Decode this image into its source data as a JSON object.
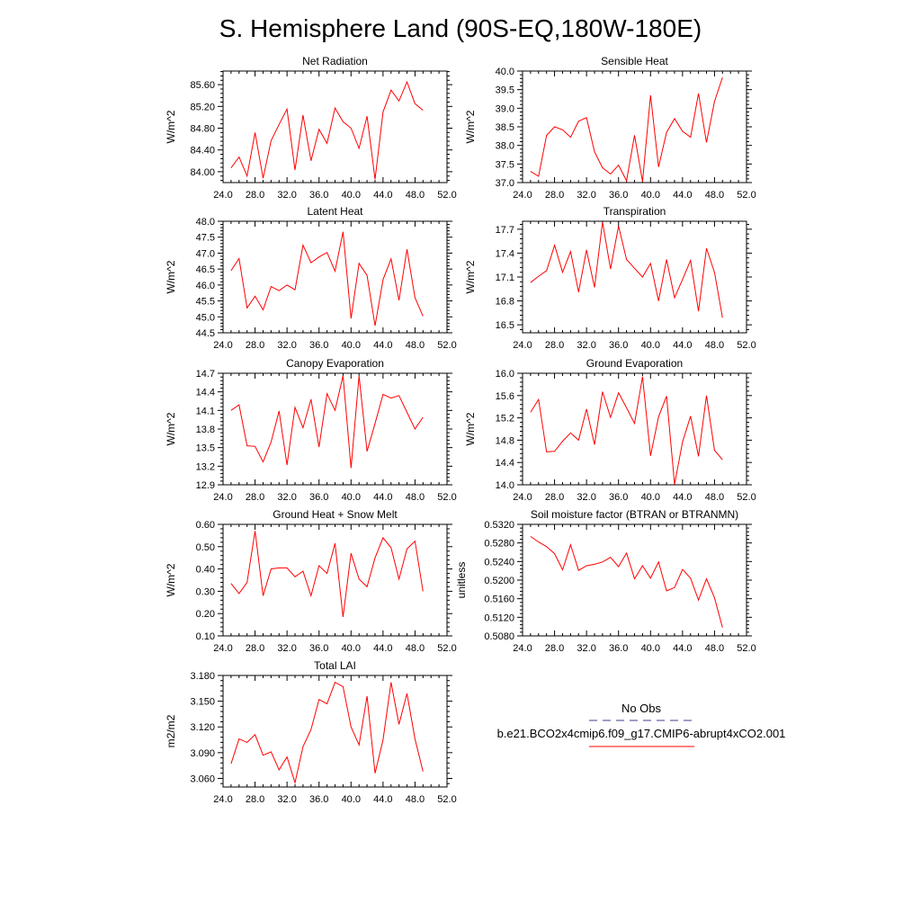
{
  "figure": {
    "title": "S. Hemisphere Land (90S-EQ,180W-180E)"
  },
  "colors": {
    "series": "#ff0000",
    "obs": "#3c3c8c",
    "axis": "#000000"
  },
  "legend": {
    "obs_label": "No Obs",
    "case_label": "b.e21.BCO2x4cmip6.f09_g17.CMIP6-abrupt4xCO2.001"
  },
  "chart_data": [
    {
      "type": "line",
      "title": "Net Radiation",
      "ylabel": "W/m^2",
      "xlim": [
        24,
        52
      ],
      "ylim": [
        83.8,
        85.85
      ],
      "x_ticks": [
        "24.0",
        "28.0",
        "32.0",
        "36.0",
        "40.0",
        "44.0",
        "48.0",
        "52.0"
      ],
      "y_ticks": [
        "84.00",
        "84.40",
        "84.80",
        "85.20",
        "85.60"
      ],
      "grid": false,
      "series": [
        {
          "x": [
            25,
            26,
            27,
            28,
            29,
            30,
            31,
            32,
            33,
            34,
            35,
            36,
            37,
            38,
            39,
            40,
            41,
            42,
            43,
            44,
            45,
            46,
            47,
            48,
            49
          ],
          "values": [
            84.07,
            84.27,
            83.92,
            84.72,
            83.88,
            84.57,
            84.87,
            85.15,
            84.03,
            85.04,
            84.2,
            84.78,
            84.52,
            85.17,
            84.92,
            84.8,
            84.43,
            85.02,
            83.86,
            85.1,
            85.5,
            85.3,
            85.65,
            85.25,
            85.13
          ]
        }
      ]
    },
    {
      "type": "line",
      "title": "Sensible Heat",
      "ylabel": "W/m^2",
      "xlim": [
        24,
        52
      ],
      "ylim": [
        37,
        40
      ],
      "x_ticks": [
        "24.0",
        "28.0",
        "32.0",
        "36.0",
        "40.0",
        "44.0",
        "48.0",
        "52.0"
      ],
      "y_ticks": [
        "37.0",
        "37.5",
        "38.0",
        "38.5",
        "39.0",
        "39.5",
        "40.0"
      ],
      "grid": false,
      "series": [
        {
          "x": [
            25,
            26,
            27,
            28,
            29,
            30,
            31,
            32,
            33,
            34,
            35,
            36,
            37,
            38,
            39,
            40,
            41,
            42,
            43,
            44,
            45,
            46,
            47,
            48,
            49
          ],
          "values": [
            37.3,
            37.17,
            38.27,
            38.5,
            38.42,
            38.22,
            38.65,
            38.75,
            37.83,
            37.4,
            37.23,
            37.47,
            37.05,
            38.27,
            37.03,
            39.35,
            37.42,
            38.35,
            38.72,
            38.38,
            38.22,
            39.4,
            38.08,
            39.18,
            39.83
          ]
        }
      ]
    },
    {
      "type": "line",
      "title": "Latent Heat",
      "ylabel": "W/m^2",
      "xlim": [
        24,
        52
      ],
      "ylim": [
        44.5,
        48
      ],
      "x_ticks": [
        "24.0",
        "28.0",
        "32.0",
        "36.0",
        "40.0",
        "44.0",
        "48.0",
        "52.0"
      ],
      "y_ticks": [
        "44.5",
        "45.0",
        "45.5",
        "46.0",
        "46.5",
        "47.0",
        "47.5",
        "48.0"
      ],
      "grid": false,
      "series": [
        {
          "x": [
            25,
            26,
            27,
            28,
            29,
            30,
            31,
            32,
            33,
            34,
            35,
            36,
            37,
            38,
            39,
            40,
            41,
            42,
            43,
            44,
            45,
            46,
            47,
            48,
            49
          ],
          "values": [
            46.45,
            46.83,
            45.28,
            45.65,
            45.22,
            45.95,
            45.82,
            46.0,
            45.85,
            47.25,
            46.7,
            46.88,
            47.02,
            46.43,
            47.67,
            44.95,
            46.68,
            46.3,
            44.72,
            46.17,
            46.82,
            45.52,
            47.12,
            45.6,
            45.02
          ]
        }
      ]
    },
    {
      "type": "line",
      "title": "Transpiration",
      "ylabel": "W/m^2",
      "xlim": [
        24,
        52
      ],
      "ylim": [
        16.4,
        17.8
      ],
      "x_ticks": [
        "24.0",
        "28.0",
        "32.0",
        "36.0",
        "40.0",
        "44.0",
        "48.0",
        "52.0"
      ],
      "y_ticks": [
        "16.5",
        "16.8",
        "17.1",
        "17.4",
        "17.7"
      ],
      "grid": false,
      "series": [
        {
          "x": [
            25,
            26,
            27,
            28,
            29,
            30,
            31,
            32,
            33,
            34,
            35,
            36,
            37,
            38,
            39,
            40,
            41,
            42,
            43,
            44,
            45,
            46,
            47,
            48,
            49
          ],
          "values": [
            17.03,
            17.11,
            17.18,
            17.5,
            17.16,
            17.42,
            16.91,
            17.44,
            16.97,
            17.79,
            17.2,
            17.74,
            17.32,
            17.21,
            17.1,
            17.27,
            16.8,
            17.32,
            16.84,
            17.07,
            17.31,
            16.67,
            17.46,
            17.16,
            16.59
          ]
        }
      ]
    },
    {
      "type": "line",
      "title": "Canopy Evaporation",
      "ylabel": "W/m^2",
      "xlim": [
        24,
        52
      ],
      "ylim": [
        12.9,
        14.7
      ],
      "x_ticks": [
        "24.0",
        "28.0",
        "32.0",
        "36.0",
        "40.0",
        "44.0",
        "48.0",
        "52.0"
      ],
      "y_ticks": [
        "12.9",
        "13.2",
        "13.5",
        "13.8",
        "14.1",
        "14.4",
        "14.7"
      ],
      "grid": false,
      "series": [
        {
          "x": [
            25,
            26,
            27,
            28,
            29,
            30,
            31,
            32,
            33,
            34,
            35,
            36,
            37,
            38,
            39,
            40,
            41,
            42,
            43,
            44,
            45,
            46,
            47,
            48,
            49
          ],
          "values": [
            14.1,
            14.19,
            13.53,
            13.52,
            13.27,
            13.59,
            14.09,
            13.22,
            14.15,
            13.82,
            14.28,
            13.51,
            14.37,
            14.1,
            14.66,
            13.17,
            14.66,
            13.44,
            13.89,
            14.36,
            14.3,
            14.34,
            14.07,
            13.8,
            13.99
          ]
        }
      ]
    },
    {
      "type": "line",
      "title": "Ground Evaporation",
      "ylabel": "W/m^2",
      "xlim": [
        24,
        52
      ],
      "ylim": [
        14,
        16
      ],
      "x_ticks": [
        "24.0",
        "28.0",
        "32.0",
        "36.0",
        "40.0",
        "44.0",
        "48.0",
        "52.0"
      ],
      "y_ticks": [
        "14.0",
        "14.4",
        "14.8",
        "15.2",
        "15.6",
        "16.0"
      ],
      "grid": false,
      "series": [
        {
          "x": [
            25,
            26,
            27,
            28,
            29,
            30,
            31,
            32,
            33,
            34,
            35,
            36,
            37,
            38,
            39,
            40,
            41,
            42,
            43,
            44,
            45,
            46,
            47,
            48,
            49
          ],
          "values": [
            15.3,
            15.53,
            14.59,
            14.6,
            14.78,
            14.93,
            14.8,
            15.36,
            14.72,
            15.67,
            15.21,
            15.65,
            15.38,
            15.1,
            15.94,
            14.52,
            15.22,
            15.59,
            14.01,
            14.77,
            15.23,
            14.51,
            15.6,
            14.62,
            14.45
          ]
        }
      ]
    },
    {
      "type": "line",
      "title": "Ground Heat + Snow Melt",
      "ylabel": "W/m^2",
      "xlim": [
        24,
        52
      ],
      "ylim": [
        0.1,
        0.6
      ],
      "x_ticks": [
        "24.0",
        "28.0",
        "32.0",
        "36.0",
        "40.0",
        "44.0",
        "48.0",
        "52.0"
      ],
      "y_ticks": [
        "0.10",
        "0.20",
        "0.30",
        "0.40",
        "0.50",
        "0.60"
      ],
      "grid": false,
      "series": [
        {
          "x": [
            25,
            26,
            27,
            28,
            29,
            30,
            31,
            32,
            33,
            34,
            35,
            36,
            37,
            38,
            39,
            40,
            41,
            42,
            43,
            44,
            45,
            46,
            47,
            48,
            49
          ],
          "values": [
            0.335,
            0.29,
            0.34,
            0.57,
            0.28,
            0.4,
            0.405,
            0.405,
            0.365,
            0.39,
            0.28,
            0.415,
            0.38,
            0.515,
            0.185,
            0.47,
            0.355,
            0.32,
            0.45,
            0.54,
            0.495,
            0.355,
            0.49,
            0.525,
            0.3
          ]
        }
      ]
    },
    {
      "type": "line",
      "title": "Soil moisture factor (BTRAN or BTRANMN)",
      "ylabel": "unitless",
      "xlim": [
        24,
        52
      ],
      "ylim": [
        0.508,
        0.532
      ],
      "x_ticks": [
        "24.0",
        "28.0",
        "32.0",
        "36.0",
        "40.0",
        "44.0",
        "48.0",
        "52.0"
      ],
      "y_ticks": [
        "0.5080",
        "0.5120",
        "0.5160",
        "0.5200",
        "0.5240",
        "0.5280",
        "0.5320"
      ],
      "grid": false,
      "series": [
        {
          "x": [
            25,
            26,
            27,
            28,
            29,
            30,
            31,
            32,
            33,
            34,
            35,
            36,
            37,
            38,
            39,
            40,
            41,
            42,
            43,
            44,
            45,
            46,
            47,
            48,
            49
          ],
          "values": [
            0.5294,
            0.5282,
            0.5272,
            0.5257,
            0.5222,
            0.5276,
            0.5221,
            0.5231,
            0.5234,
            0.5239,
            0.5249,
            0.5229,
            0.5258,
            0.5203,
            0.5231,
            0.5204,
            0.5239,
            0.5177,
            0.5184,
            0.5223,
            0.5204,
            0.5157,
            0.5203,
            0.5162,
            0.5098
          ]
        }
      ]
    },
    {
      "type": "line",
      "title": "Total LAI",
      "ylabel": "m2/m2",
      "xlim": [
        24,
        52
      ],
      "ylim": [
        3.05,
        3.18
      ],
      "x_ticks": [
        "24.0",
        "28.0",
        "32.0",
        "36.0",
        "40.0",
        "44.0",
        "48.0",
        "52.0"
      ],
      "y_ticks": [
        "3.060",
        "3.090",
        "3.120",
        "3.150",
        "3.180"
      ],
      "grid": false,
      "series": [
        {
          "x": [
            25,
            26,
            27,
            28,
            29,
            30,
            31,
            32,
            33,
            34,
            35,
            36,
            37,
            38,
            39,
            40,
            41,
            42,
            43,
            44,
            45,
            46,
            47,
            48,
            49
          ],
          "values": [
            3.077,
            3.106,
            3.102,
            3.111,
            3.087,
            3.091,
            3.07,
            3.085,
            3.055,
            3.097,
            3.117,
            3.152,
            3.147,
            3.172,
            3.167,
            3.12,
            3.099,
            3.156,
            3.066,
            3.105,
            3.172,
            3.123,
            3.159,
            3.106,
            3.068
          ]
        }
      ]
    }
  ]
}
